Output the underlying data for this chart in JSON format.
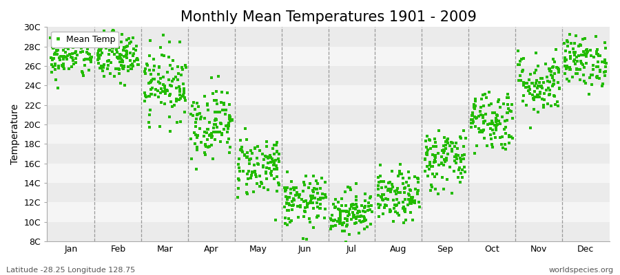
{
  "title": "Monthly Mean Temperatures 1901 - 2009",
  "ylabel": "Temperature",
  "footnote_left": "Latitude -28.25 Longitude 128.75",
  "footnote_right": "worldspecies.org",
  "legend_label": "Mean Temp",
  "months": [
    "Jan",
    "Feb",
    "Mar",
    "Apr",
    "May",
    "Jun",
    "Jul",
    "Aug",
    "Sep",
    "Oct",
    "Nov",
    "Dec"
  ],
  "month_means": [
    27.2,
    26.8,
    24.2,
    20.2,
    15.8,
    12.0,
    11.0,
    12.5,
    16.5,
    20.5,
    24.2,
    26.5
  ],
  "month_stds": [
    1.3,
    1.3,
    1.8,
    1.8,
    1.6,
    1.3,
    1.2,
    1.3,
    1.6,
    1.6,
    1.6,
    1.3
  ],
  "n_years": 109,
  "ylim": [
    8,
    30
  ],
  "yticks": [
    8,
    10,
    12,
    14,
    16,
    18,
    20,
    22,
    24,
    26,
    28,
    30
  ],
  "ytick_labels": [
    "8C",
    "10C",
    "12C",
    "14C",
    "16C",
    "18C",
    "20C",
    "22C",
    "24C",
    "26C",
    "28C",
    "30C"
  ],
  "dot_color": "#22bb00",
  "dot_size": 5,
  "dot_marker": "s",
  "vline_color": "#999999",
  "bg_band_color1": "#ebebeb",
  "bg_band_color2": "#f5f5f5",
  "title_fontsize": 15,
  "axis_fontsize": 10,
  "tick_fontsize": 9,
  "footnote_fontsize": 8
}
